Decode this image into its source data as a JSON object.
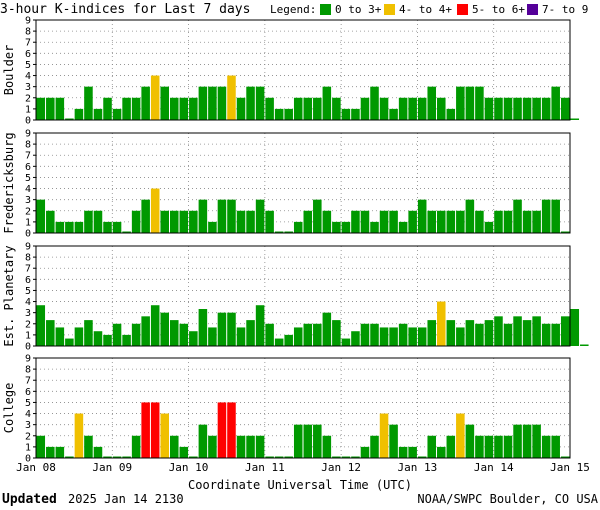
{
  "title": "3-hour K-indices for Last 7 days",
  "legend": {
    "label": "Legend:",
    "items": [
      {
        "label": "0 to 3+",
        "color": "#009900"
      },
      {
        "label": "4- to 4+",
        "color": "#f0c000"
      },
      {
        "label": "5- to 6+",
        "color": "#ff0000"
      },
      {
        "label": "7- to 9",
        "color": "#550099"
      }
    ]
  },
  "footer": {
    "updated_label": "Updated",
    "updated_value": "2025 Jan 14 2130",
    "credit": "NOAA/SWPC Boulder, CO USA"
  },
  "chart_data": {
    "type": "bar",
    "xlabel": "Coordinate Universal Time (UTC)",
    "x_tick_labels": [
      "Jan 08",
      "Jan 09",
      "Jan 10",
      "Jan 11",
      "Jan 12",
      "Jan 13",
      "Jan 14",
      "Jan 15"
    ],
    "ylim": [
      0,
      9
    ],
    "y_ticks": [
      0,
      1,
      2,
      3,
      4,
      5,
      6,
      7,
      8,
      9
    ],
    "bins_per_day": 8,
    "grid": true,
    "panels": [
      {
        "name": "Boulder",
        "values": [
          2,
          2,
          2,
          0,
          1,
          3,
          1,
          2,
          1,
          2,
          2,
          3,
          4,
          3,
          2,
          2,
          2,
          3,
          3,
          3,
          4,
          2,
          3,
          3,
          2,
          1,
          1,
          2,
          2,
          2,
          3,
          2,
          1,
          1,
          2,
          3,
          2,
          1,
          2,
          2,
          2,
          3,
          2,
          1,
          3,
          3,
          3,
          2,
          2,
          2,
          2,
          2,
          2,
          2,
          3,
          2,
          0
        ]
      },
      {
        "name": "Fredericksburg",
        "values": [
          3,
          2,
          1,
          1,
          1,
          2,
          2,
          1,
          1,
          0,
          2,
          3,
          4,
          2,
          2,
          2,
          2,
          3,
          1,
          3,
          3,
          2,
          2,
          3,
          2,
          0,
          0,
          1,
          2,
          3,
          2,
          1,
          1,
          2,
          2,
          1,
          2,
          2,
          1,
          2,
          3,
          2,
          2,
          2,
          2,
          3,
          2,
          1,
          2,
          2,
          3,
          2,
          2,
          3,
          3,
          0
        ]
      },
      {
        "name": "Est. Planetary",
        "values": [
          3.67,
          2.33,
          1.67,
          0.67,
          1.67,
          2.33,
          1.33,
          1,
          2,
          1,
          2,
          2.67,
          3.67,
          3,
          2.33,
          2,
          1.33,
          3.33,
          1.67,
          3,
          3,
          1.67,
          2.33,
          3.67,
          2,
          0.67,
          1,
          1.67,
          2,
          2,
          3,
          2.33,
          0.67,
          1.33,
          2,
          2,
          1.67,
          1.67,
          2,
          1.67,
          1.67,
          2.33,
          4,
          2.33,
          1.67,
          2.33,
          2,
          2.33,
          2.67,
          2,
          2.67,
          2.33,
          2.67,
          2,
          2,
          2.67,
          3.33,
          0
        ]
      },
      {
        "name": "College",
        "values": [
          2,
          1,
          1,
          0,
          4,
          2,
          1,
          0,
          0,
          0,
          2,
          5,
          5,
          4,
          2,
          1,
          0,
          3,
          2,
          5,
          5,
          2,
          2,
          2,
          0,
          0,
          0,
          3,
          3,
          3,
          2,
          0,
          0,
          0,
          1,
          2,
          4,
          3,
          1,
          1,
          0,
          2,
          1,
          2,
          4,
          3,
          2,
          2,
          2,
          2,
          3,
          3,
          3,
          2,
          2,
          0
        ]
      }
    ]
  }
}
